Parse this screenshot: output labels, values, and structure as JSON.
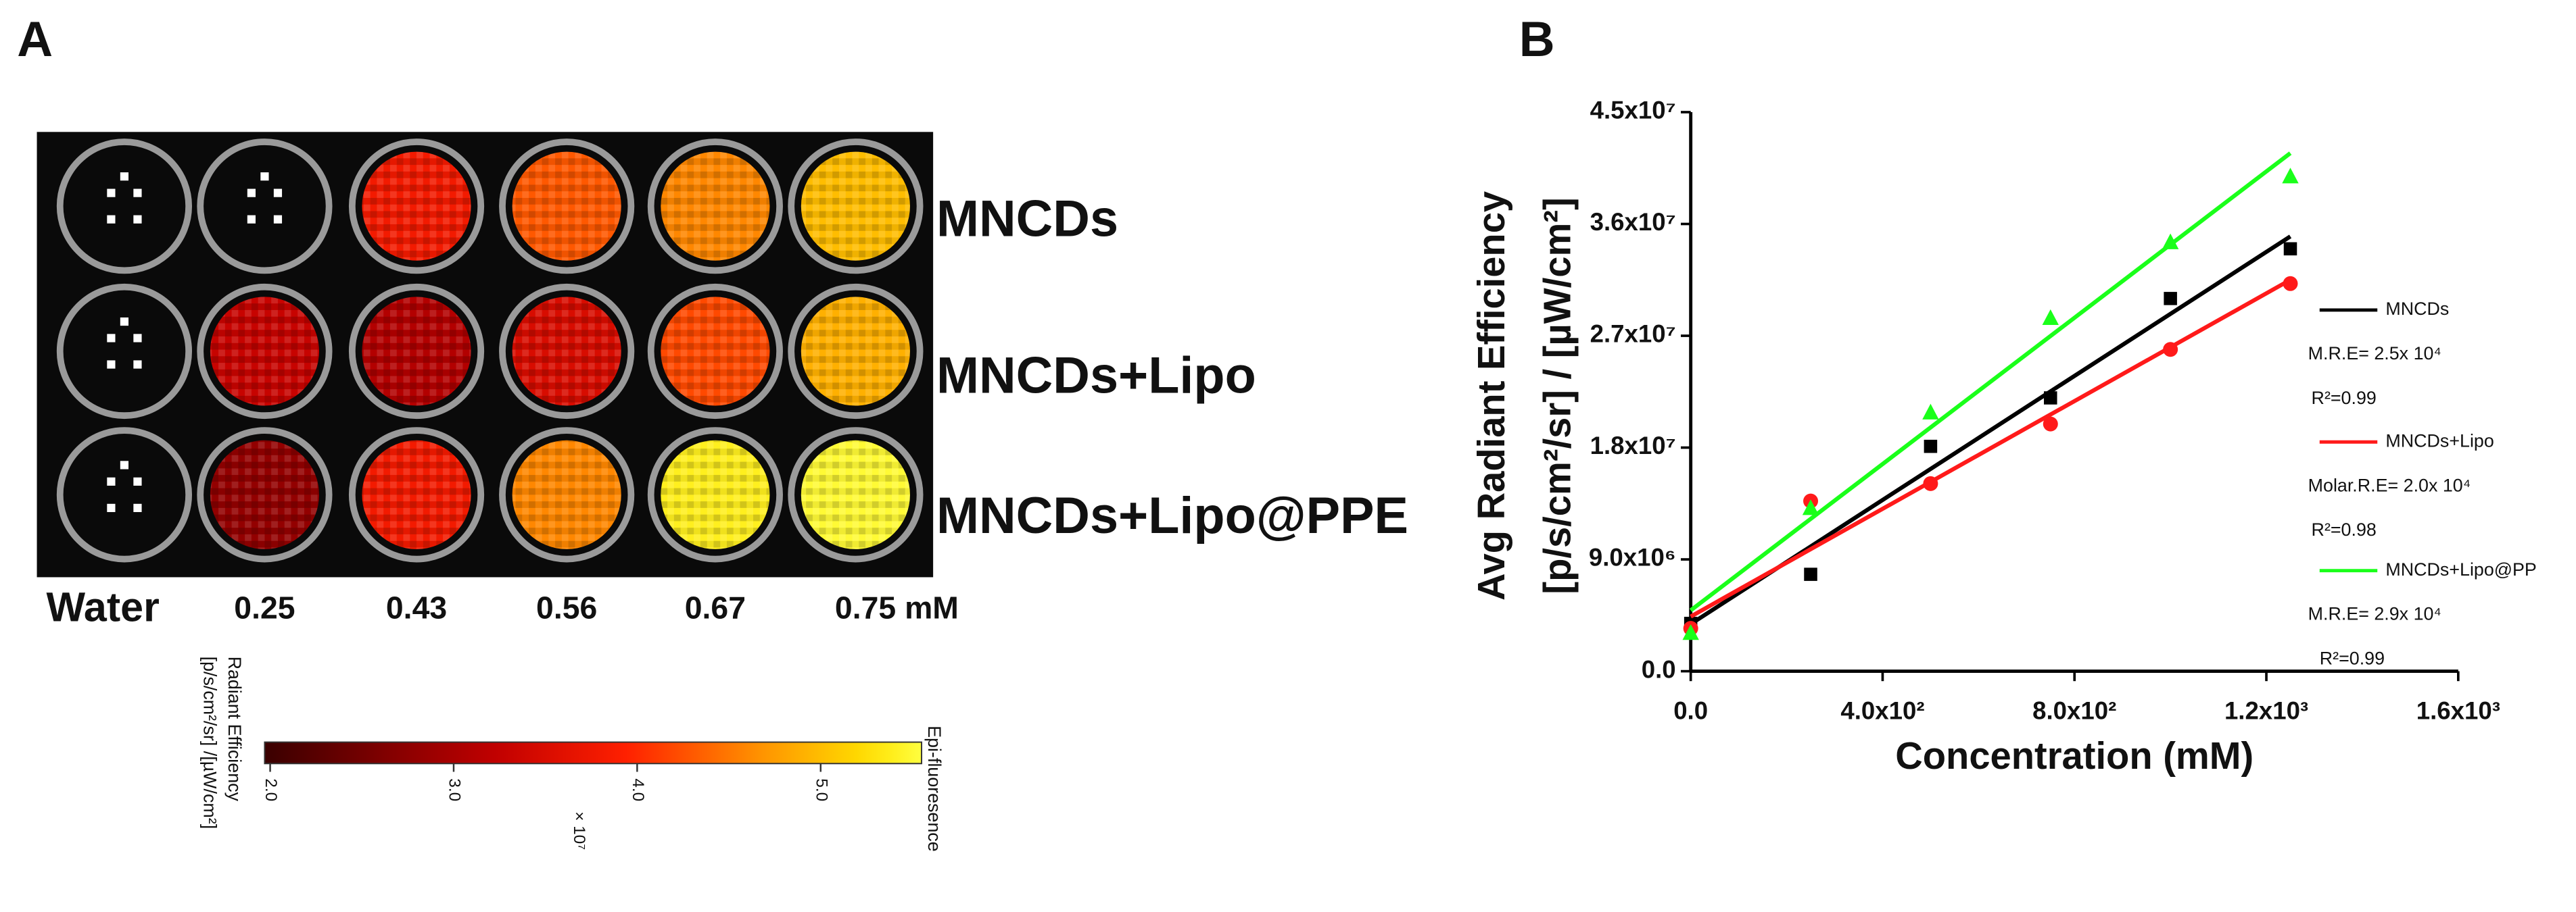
{
  "panel_a": {
    "label": "A",
    "rows": [
      "MNCDs",
      "MNCDs+Lipo",
      "MNCDs+Lipo@PPE"
    ],
    "columns": [
      "Water",
      "0.25",
      "0.43",
      "0.56",
      "0.67",
      "0.75 mM"
    ],
    "wells": [
      [
        null,
        null,
        3.8,
        4.3,
        4.6,
        5.0
      ],
      [
        null,
        3.3,
        3.1,
        3.5,
        4.2,
        4.9
      ],
      [
        null,
        2.8,
        3.8,
        4.6,
        5.4,
        5.5
      ]
    ],
    "colorbar": {
      "title": "Radiant Efficiency",
      "units": "[p/s/cm²/sr] /[µW/cm²]",
      "caption": "Epi-fluoresence",
      "multiplier": "× 10⁷",
      "lim": [
        1.97,
        5.55
      ],
      "ticks": [
        {
          "value": 2,
          "label": "2.0"
        },
        {
          "value": 3,
          "label": "3.0"
        },
        {
          "value": 4,
          "label": "4.0"
        },
        {
          "value": 5,
          "label": "5.0"
        }
      ]
    }
  },
  "chart_data": {
    "type": "scatter",
    "label": "B",
    "xlabel": "Concentration (mM)",
    "ylabel": [
      "Avg Radiant Efficiency",
      "[p/s/cm²/sr] / [µW/cm²]"
    ],
    "x": [
      0,
      250,
      500,
      750,
      1000,
      1250
    ],
    "fit_x": [
      0,
      1250
    ],
    "series": [
      {
        "name": "MNCDs",
        "color": "#000000",
        "marker": "square",
        "values": [
          3850000,
          7800000,
          18100000,
          22000000,
          30000000,
          34000000
        ],
        "fit_values": [
          3800000,
          35000000
        ],
        "annotations": [
          "M.R.E= 2.5x 10⁴",
          "R²=0.99"
        ]
      },
      {
        "name": "MNCDs+Lipo",
        "color": "#ff1a1a",
        "marker": "circle",
        "values": [
          3450000,
          13700000,
          15100000,
          19900000,
          25900000,
          31200000
        ],
        "fit_values": [
          4400000,
          31500000
        ],
        "annotations": [
          "Molar.R.E= 2.0x 10⁴",
          "R²=0.98"
        ]
      },
      {
        "name": "MNCDs+Lipo@PP",
        "color": "#1aff1a",
        "marker": "triangle",
        "values": [
          3050000,
          13100000,
          20800000,
          28400000,
          34500000,
          39800000
        ],
        "fit_values": [
          4900000,
          41700000
        ],
        "annotations": [
          "M.R.E= 2.9x 10⁴",
          "R²=0.99"
        ]
      }
    ],
    "xlim": [
      0,
      1600
    ],
    "xticks": [
      {
        "value": 0,
        "label": "0.0"
      },
      {
        "value": 400,
        "label": "4.0x10²"
      },
      {
        "value": 800,
        "label": "8.0x10²"
      },
      {
        "value": 1200,
        "label": "1.2x10³"
      },
      {
        "value": 1600,
        "label": "1.6x10³"
      }
    ],
    "ylim": [
      0,
      45000000
    ],
    "yticks": [
      {
        "value": 0,
        "label": "0.0"
      },
      {
        "value": 9000000,
        "label": "9.0x10⁶"
      },
      {
        "value": 18000000,
        "label": "1.8x10⁷"
      },
      {
        "value": 27000000,
        "label": "2.7x10⁷"
      },
      {
        "value": 36000000,
        "label": "3.6x10⁷"
      },
      {
        "value": 45000000,
        "label": "4.5x10⁷"
      }
    ]
  }
}
